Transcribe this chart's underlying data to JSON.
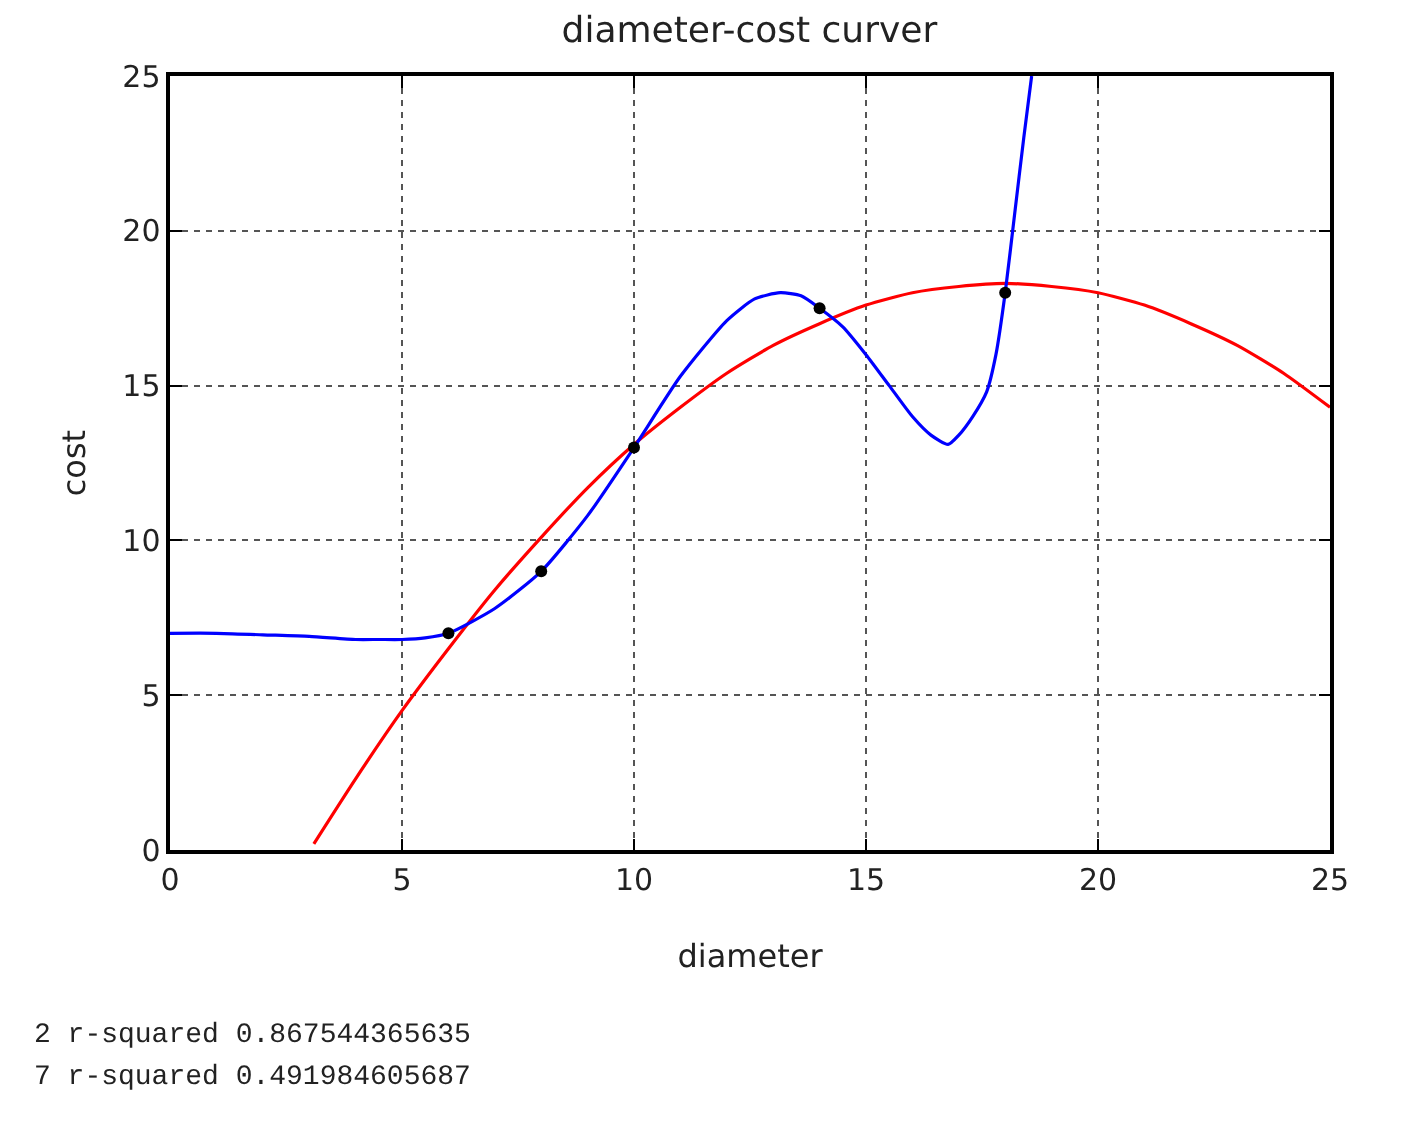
{
  "chart_data": {
    "type": "scatter",
    "title": "diameter-cost curver",
    "xlabel": "diameter",
    "ylabel": "cost",
    "xlim": [
      0,
      25
    ],
    "xticks": [
      0,
      5,
      10,
      15,
      20,
      25
    ],
    "ylim": [
      0,
      25
    ],
    "yticks": [
      0,
      5,
      10,
      15,
      20,
      25
    ],
    "grid": true,
    "marker": "circle",
    "series": [
      {
        "type": "line",
        "marker": "none",
        "color": "#ff0000",
        "x": [
          3.1,
          4,
          5,
          6,
          7,
          8,
          9,
          10,
          11,
          12,
          13,
          14,
          15,
          16,
          17,
          18,
          19,
          20,
          21,
          22,
          23,
          24,
          25
        ],
        "values": [
          0.2,
          2.3,
          4.5,
          6.5,
          8.4,
          10.1,
          11.7,
          13.1,
          14.3,
          15.4,
          16.3,
          17.0,
          17.6,
          18.0,
          18.2,
          18.3,
          18.2,
          18.0,
          17.6,
          17.0,
          16.3,
          15.4,
          14.3
        ]
      },
      {
        "type": "line",
        "marker": "none",
        "color": "#0000ff",
        "x": [
          0,
          1,
          2,
          3,
          4,
          4.5,
          5,
          5.5,
          6,
          7,
          8,
          9,
          10,
          11,
          12,
          12.6,
          13.15,
          13.6,
          14,
          14.5,
          15,
          15.5,
          16,
          16.4,
          16.77,
          17,
          17.3,
          17.6,
          17.8,
          18,
          18.2,
          18.4,
          18.57
        ],
        "values": [
          7.0,
          7.0,
          6.95,
          6.9,
          6.8,
          6.8,
          6.8,
          6.85,
          7.0,
          7.8,
          9.0,
          10.8,
          13.0,
          15.3,
          17.1,
          17.8,
          18.0,
          17.9,
          17.5,
          16.9,
          16.0,
          15.0,
          14.0,
          13.4,
          13.1,
          13.4,
          14.0,
          14.8,
          16.0,
          18.0,
          20.5,
          23.0,
          25.0
        ]
      },
      {
        "color": "#000000",
        "x": [
          6,
          8,
          10,
          14,
          18
        ],
        "values": [
          7,
          9,
          13,
          17.5,
          18
        ]
      }
    ],
    "annotations": [
      "2 r-squared 0.867544365635",
      "7 r-squared 0.491984605687"
    ]
  }
}
